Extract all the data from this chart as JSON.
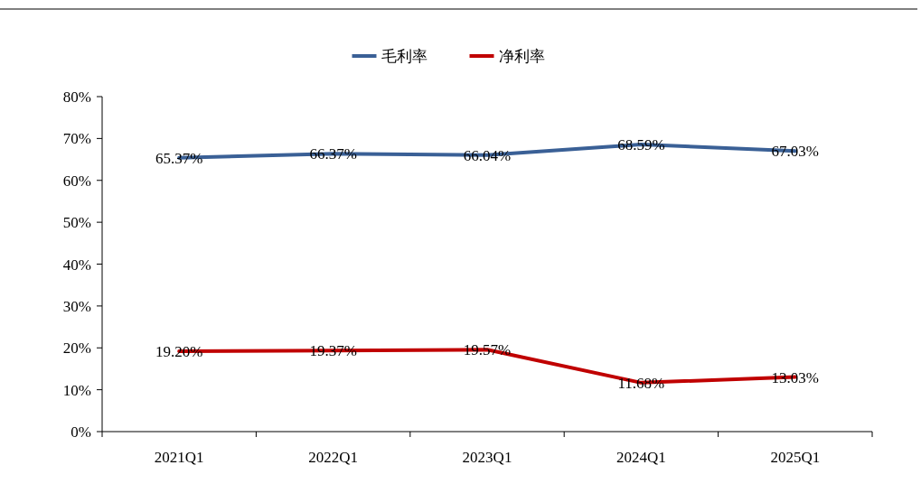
{
  "chart_data": {
    "type": "line",
    "categories": [
      "2021Q1",
      "2022Q1",
      "2023Q1",
      "2024Q1",
      "2025Q1"
    ],
    "series": [
      {
        "name": "毛利率",
        "color": "#3a6096",
        "values": [
          65.37,
          66.37,
          66.04,
          68.59,
          67.03
        ],
        "value_labels": [
          "65.37%",
          "66.37%",
          "66.04%",
          "68.59%",
          "67.03%"
        ]
      },
      {
        "name": "净利率",
        "color": "#c00000",
        "values": [
          19.2,
          19.37,
          19.57,
          11.68,
          13.03
        ],
        "value_labels": [
          "19.20%",
          "19.37%",
          "19.57%",
          "11.68%",
          "13.03%"
        ]
      }
    ],
    "ylim": [
      0,
      80
    ],
    "yticks": [
      {
        "value": 0,
        "label": "0%"
      },
      {
        "value": 10,
        "label": "10%"
      },
      {
        "value": 20,
        "label": "20%"
      },
      {
        "value": 30,
        "label": "30%"
      },
      {
        "value": 40,
        "label": "40%"
      },
      {
        "value": 50,
        "label": "50%"
      },
      {
        "value": 60,
        "label": "60%"
      },
      {
        "value": 70,
        "label": "70%"
      },
      {
        "value": 80,
        "label": "80%"
      }
    ],
    "grid": false,
    "legend": "top",
    "marker": "none",
    "line_style": "solid"
  }
}
